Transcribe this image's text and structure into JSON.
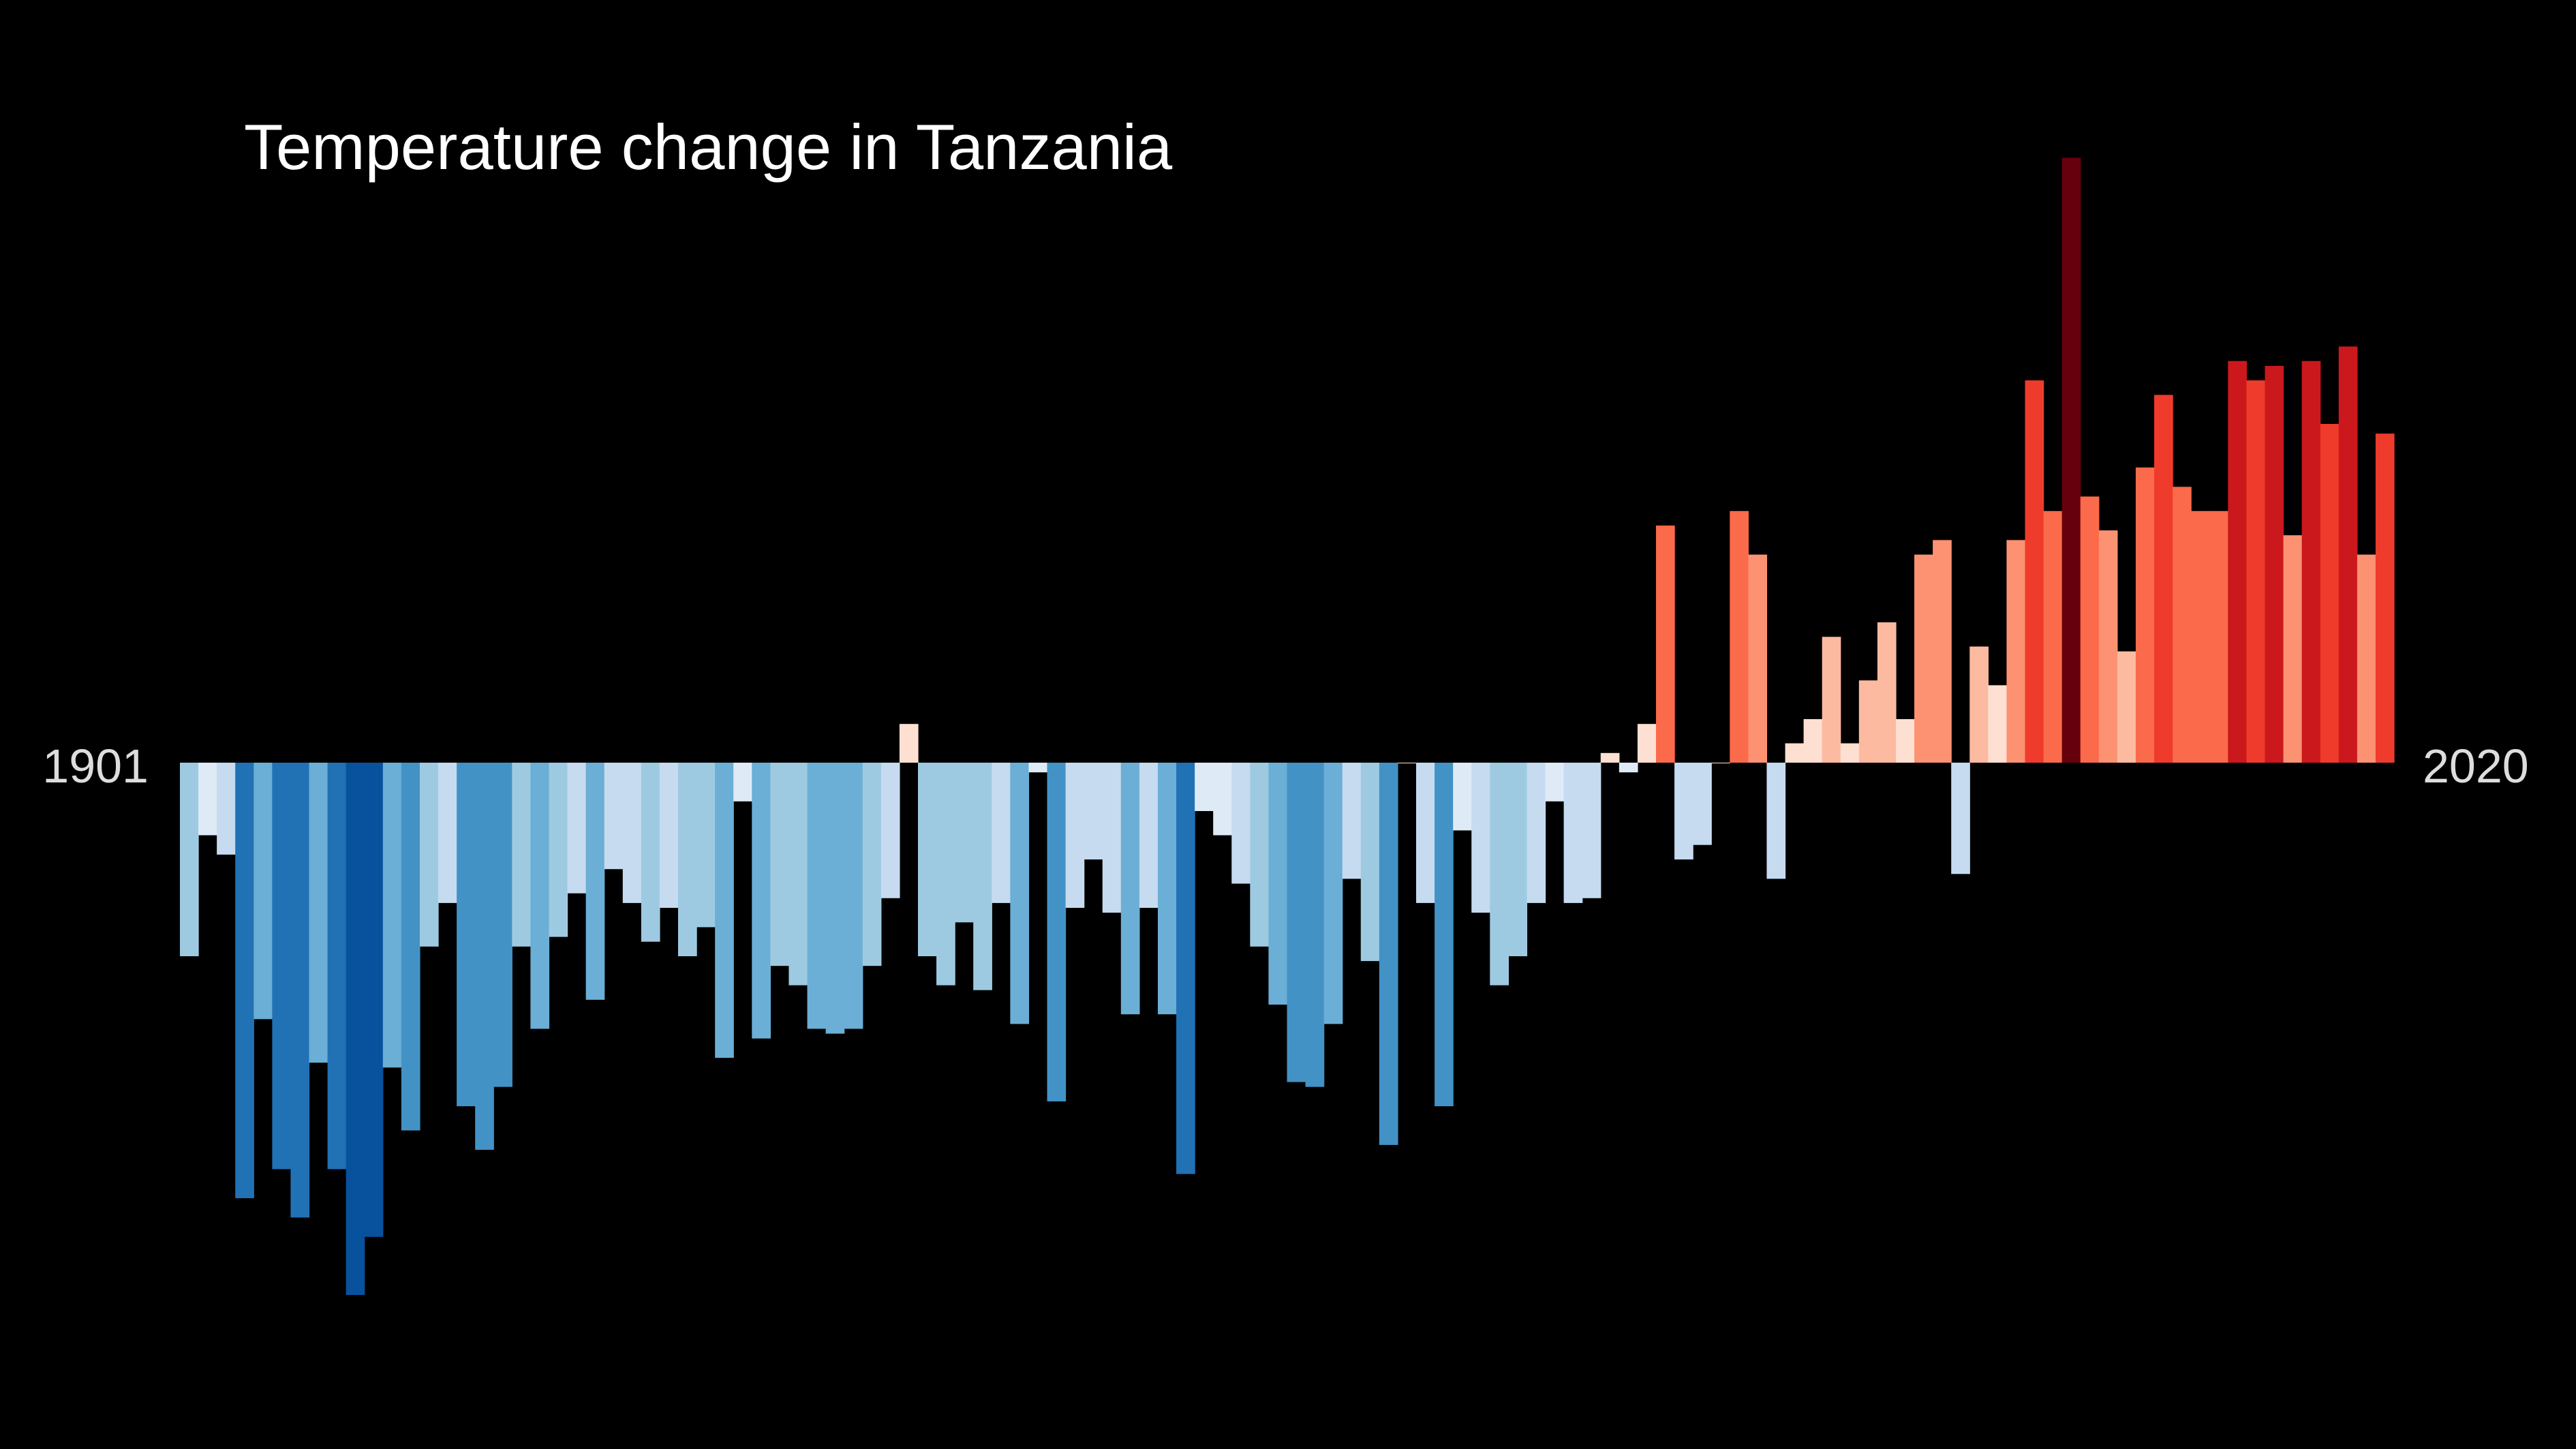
{
  "chart_data": {
    "type": "bar",
    "title": "Temperature change in Tanzania",
    "x_start_label": "1901",
    "x_end_label": "2020",
    "categories_first": 1901,
    "categories_last": 2020,
    "values": [
      -0.4,
      -0.15,
      -0.19,
      -0.9,
      -0.53,
      -0.84,
      -0.94,
      -0.62,
      -0.84,
      -1.1,
      -0.98,
      -0.63,
      -0.76,
      -0.38,
      -0.29,
      -0.71,
      -0.8,
      -0.67,
      -0.38,
      -0.55,
      -0.36,
      -0.27,
      -0.49,
      -0.22,
      -0.29,
      -0.37,
      -0.3,
      -0.4,
      -0.34,
      -0.61,
      -0.08,
      -0.57,
      -0.42,
      -0.46,
      -0.55,
      -0.56,
      -0.55,
      -0.42,
      -0.28,
      0.08,
      -0.4,
      -0.46,
      -0.33,
      -0.47,
      -0.29,
      -0.54,
      -0.02,
      -0.7,
      -0.3,
      -0.2,
      -0.31,
      -0.52,
      -0.3,
      -0.52,
      -0.85,
      -0.1,
      -0.15,
      -0.25,
      -0.38,
      -0.5,
      -0.66,
      -0.67,
      -0.54,
      -0.24,
      -0.41,
      -0.79,
      0.0,
      -0.29,
      -0.71,
      -0.14,
      -0.31,
      -0.46,
      -0.4,
      -0.29,
      -0.08,
      -0.29,
      -0.28,
      0.02,
      -0.02,
      0.08,
      0.49,
      -0.2,
      -0.17,
      0.0,
      0.52,
      0.43,
      -0.24,
      0.04,
      0.09,
      0.26,
      0.04,
      0.17,
      0.29,
      0.09,
      0.43,
      0.46,
      -0.23,
      0.24,
      0.16,
      0.46,
      0.79,
      0.52,
      1.25,
      0.55,
      0.48,
      0.23,
      0.61,
      0.76,
      0.57,
      0.52,
      0.52,
      0.83,
      0.79,
      0.82,
      0.47,
      0.83,
      0.7,
      0.86,
      0.43,
      0.68
    ],
    "color_scale": "RdBu (warming stripes)",
    "bar_colors_hex": [
      "#08306b",
      "#08519c",
      "#2171b5",
      "#4292c6",
      "#6baed6",
      "#9ecae1",
      "#c6dbef",
      "#deebf7",
      "#fee0d2",
      "#fcbba1",
      "#fc9272",
      "#fb6a4a",
      "#ef3b2c",
      "#cb181d",
      "#a50f15",
      "#67000d"
    ],
    "background": "#000000",
    "baseline": 0,
    "ylim": [
      -1.3,
      1.3
    ],
    "grid": false,
    "legend": "none"
  }
}
